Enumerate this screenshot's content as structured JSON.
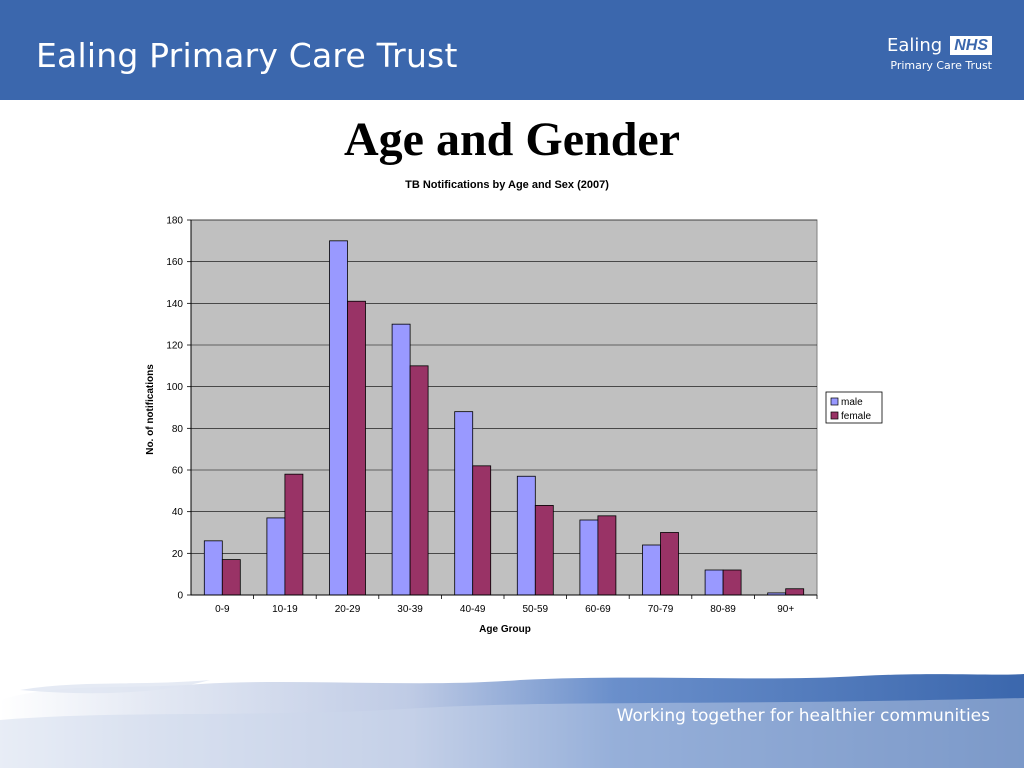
{
  "header": {
    "title": "Ealing Primary Care Trust",
    "logo_name": "Ealing",
    "logo_badge": "NHS",
    "logo_subtitle": "Primary Care Trust",
    "colors": {
      "header_bg": "#3b67ad",
      "text": "#ffffff"
    }
  },
  "slide": {
    "title": "Age and Gender"
  },
  "footer": {
    "tagline": "Working together for healthier communities"
  },
  "chart_data": {
    "type": "bar",
    "title": "TB Notifications by Age and Sex (2007)",
    "xlabel": "Age Group",
    "ylabel": "No. of notifications",
    "ylim": [
      0,
      180
    ],
    "yticks": [
      0,
      20,
      40,
      60,
      80,
      100,
      120,
      140,
      160,
      180
    ],
    "grid": true,
    "legend_position": "right",
    "categories": [
      "0-9",
      "10-19",
      "20-29",
      "30-39",
      "40-49",
      "50-59",
      "60-69",
      "70-79",
      "80-89",
      "90+"
    ],
    "series": [
      {
        "name": "male",
        "color": "#9999ff",
        "values": [
          26,
          37,
          170,
          130,
          88,
          57,
          36,
          24,
          12,
          1
        ]
      },
      {
        "name": "female",
        "color": "#993366",
        "values": [
          17,
          58,
          141,
          110,
          62,
          43,
          38,
          30,
          12,
          3
        ]
      }
    ],
    "plot_background": "#c0c0c0"
  }
}
